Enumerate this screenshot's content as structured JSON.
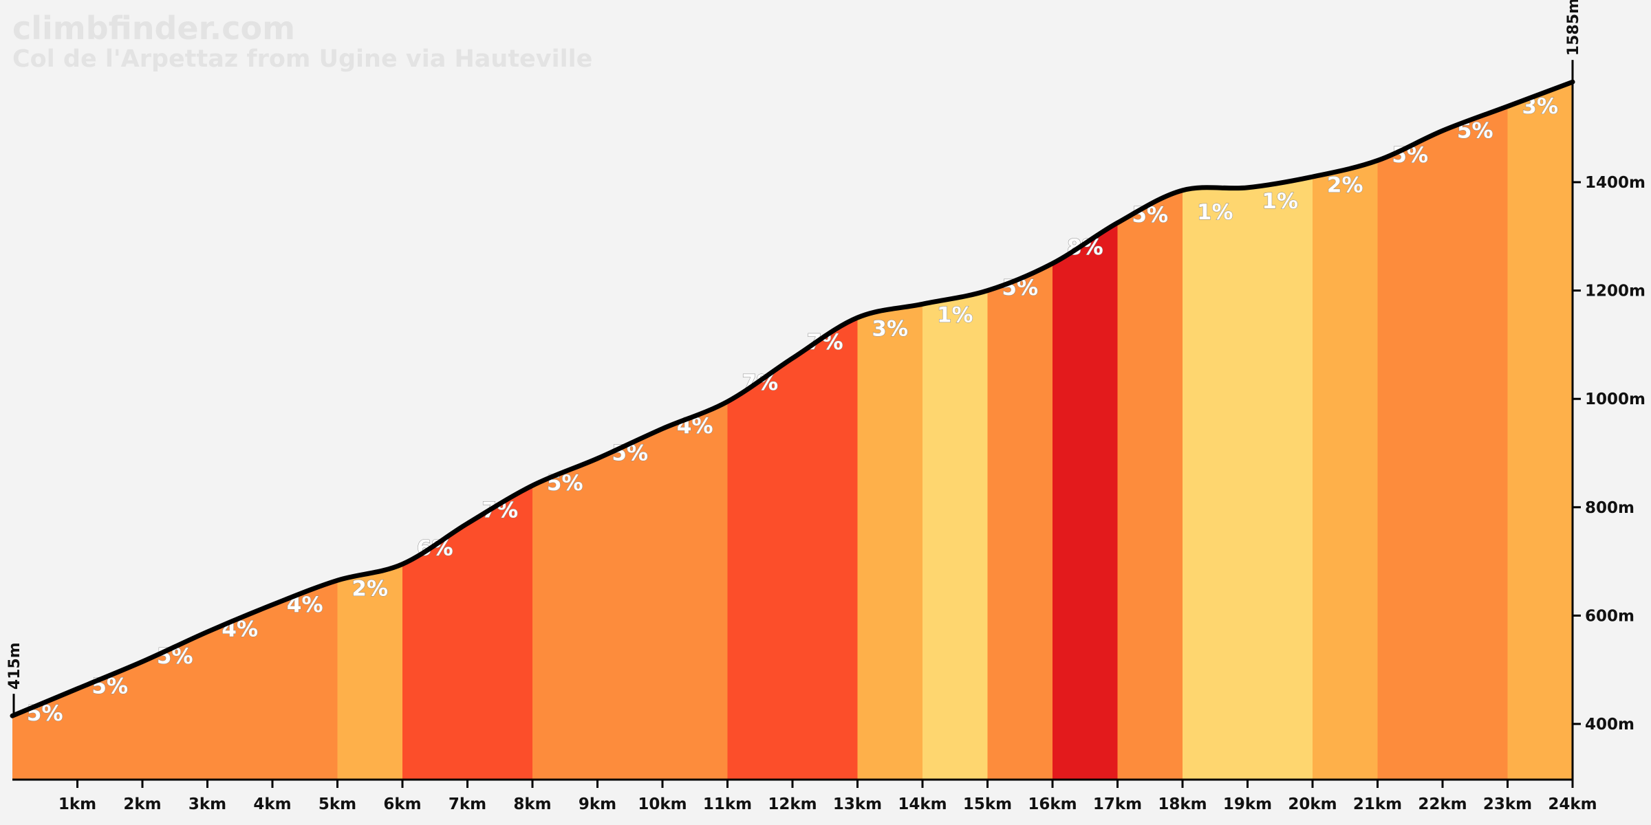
{
  "header": {
    "brand": "climbfinder.com",
    "climb_name": "Col de l'Arpettaz from Ugine via Hauteville"
  },
  "colors": {
    "grade_1": "#fed66f",
    "grade_2_3": "#feb04a",
    "grade_4_5": "#fd8c3c",
    "grade_6_7": "#fc4e2a",
    "grade_8": "#e31a1c",
    "line": "#000000",
    "background": "#f3f3f3"
  },
  "chart_data": {
    "type": "area",
    "title": "Col de l'Arpettaz from Ugine via Hauteville",
    "xlabel": "",
    "ylabel": "",
    "xlim": [
      0,
      24
    ],
    "ylim": [
      300,
      1600
    ],
    "grid": false,
    "start_label": "415m",
    "end_label": "1585m",
    "x_ticks": [
      "1km",
      "2km",
      "3km",
      "4km",
      "5km",
      "6km",
      "7km",
      "8km",
      "9km",
      "10km",
      "11km",
      "12km",
      "13km",
      "14km",
      "15km",
      "16km",
      "17km",
      "18km",
      "19km",
      "20km",
      "21km",
      "22km",
      "23km",
      "24km"
    ],
    "y_ticks": [
      {
        "value": 400,
        "label": "400m"
      },
      {
        "value": 600,
        "label": "600m"
      },
      {
        "value": 800,
        "label": "800m"
      },
      {
        "value": 1000,
        "label": "1000m"
      },
      {
        "value": 1200,
        "label": "1200m"
      },
      {
        "value": 1400,
        "label": "1400m"
      }
    ],
    "profile": {
      "x_km": [
        0,
        1,
        2,
        3,
        4,
        5,
        6,
        7,
        8,
        9,
        10,
        11,
        12,
        13,
        14,
        15,
        16,
        17,
        18,
        19,
        20,
        21,
        22,
        23,
        24
      ],
      "elevation_m": [
        415,
        465,
        515,
        570,
        620,
        665,
        695,
        770,
        840,
        890,
        945,
        995,
        1075,
        1150,
        1175,
        1200,
        1250,
        1325,
        1385,
        1390,
        1410,
        1440,
        1495,
        1540,
        1585
      ]
    },
    "segments": [
      {
        "label": "5%",
        "grade": 5
      },
      {
        "label": "5%",
        "grade": 5
      },
      {
        "label": "5%",
        "grade": 5
      },
      {
        "label": "4%",
        "grade": 4
      },
      {
        "label": "4%",
        "grade": 4
      },
      {
        "label": "2%",
        "grade": 2
      },
      {
        "label": "6%",
        "grade": 6
      },
      {
        "label": "7%",
        "grade": 7
      },
      {
        "label": "5%",
        "grade": 5
      },
      {
        "label": "5%",
        "grade": 5
      },
      {
        "label": "4%",
        "grade": 4
      },
      {
        "label": "7%",
        "grade": 7
      },
      {
        "label": "7%",
        "grade": 7
      },
      {
        "label": "3%",
        "grade": 3
      },
      {
        "label": "1%",
        "grade": 1
      },
      {
        "label": "5%",
        "grade": 5
      },
      {
        "label": "8%",
        "grade": 8
      },
      {
        "label": "5%",
        "grade": 5
      },
      {
        "label": "1%",
        "grade": 1
      },
      {
        "label": "1%",
        "grade": 1
      },
      {
        "label": "2%",
        "grade": 2
      },
      {
        "label": "5%",
        "grade": 5
      },
      {
        "label": "5%",
        "grade": 5
      },
      {
        "label": "3%",
        "grade": 3
      }
    ]
  }
}
